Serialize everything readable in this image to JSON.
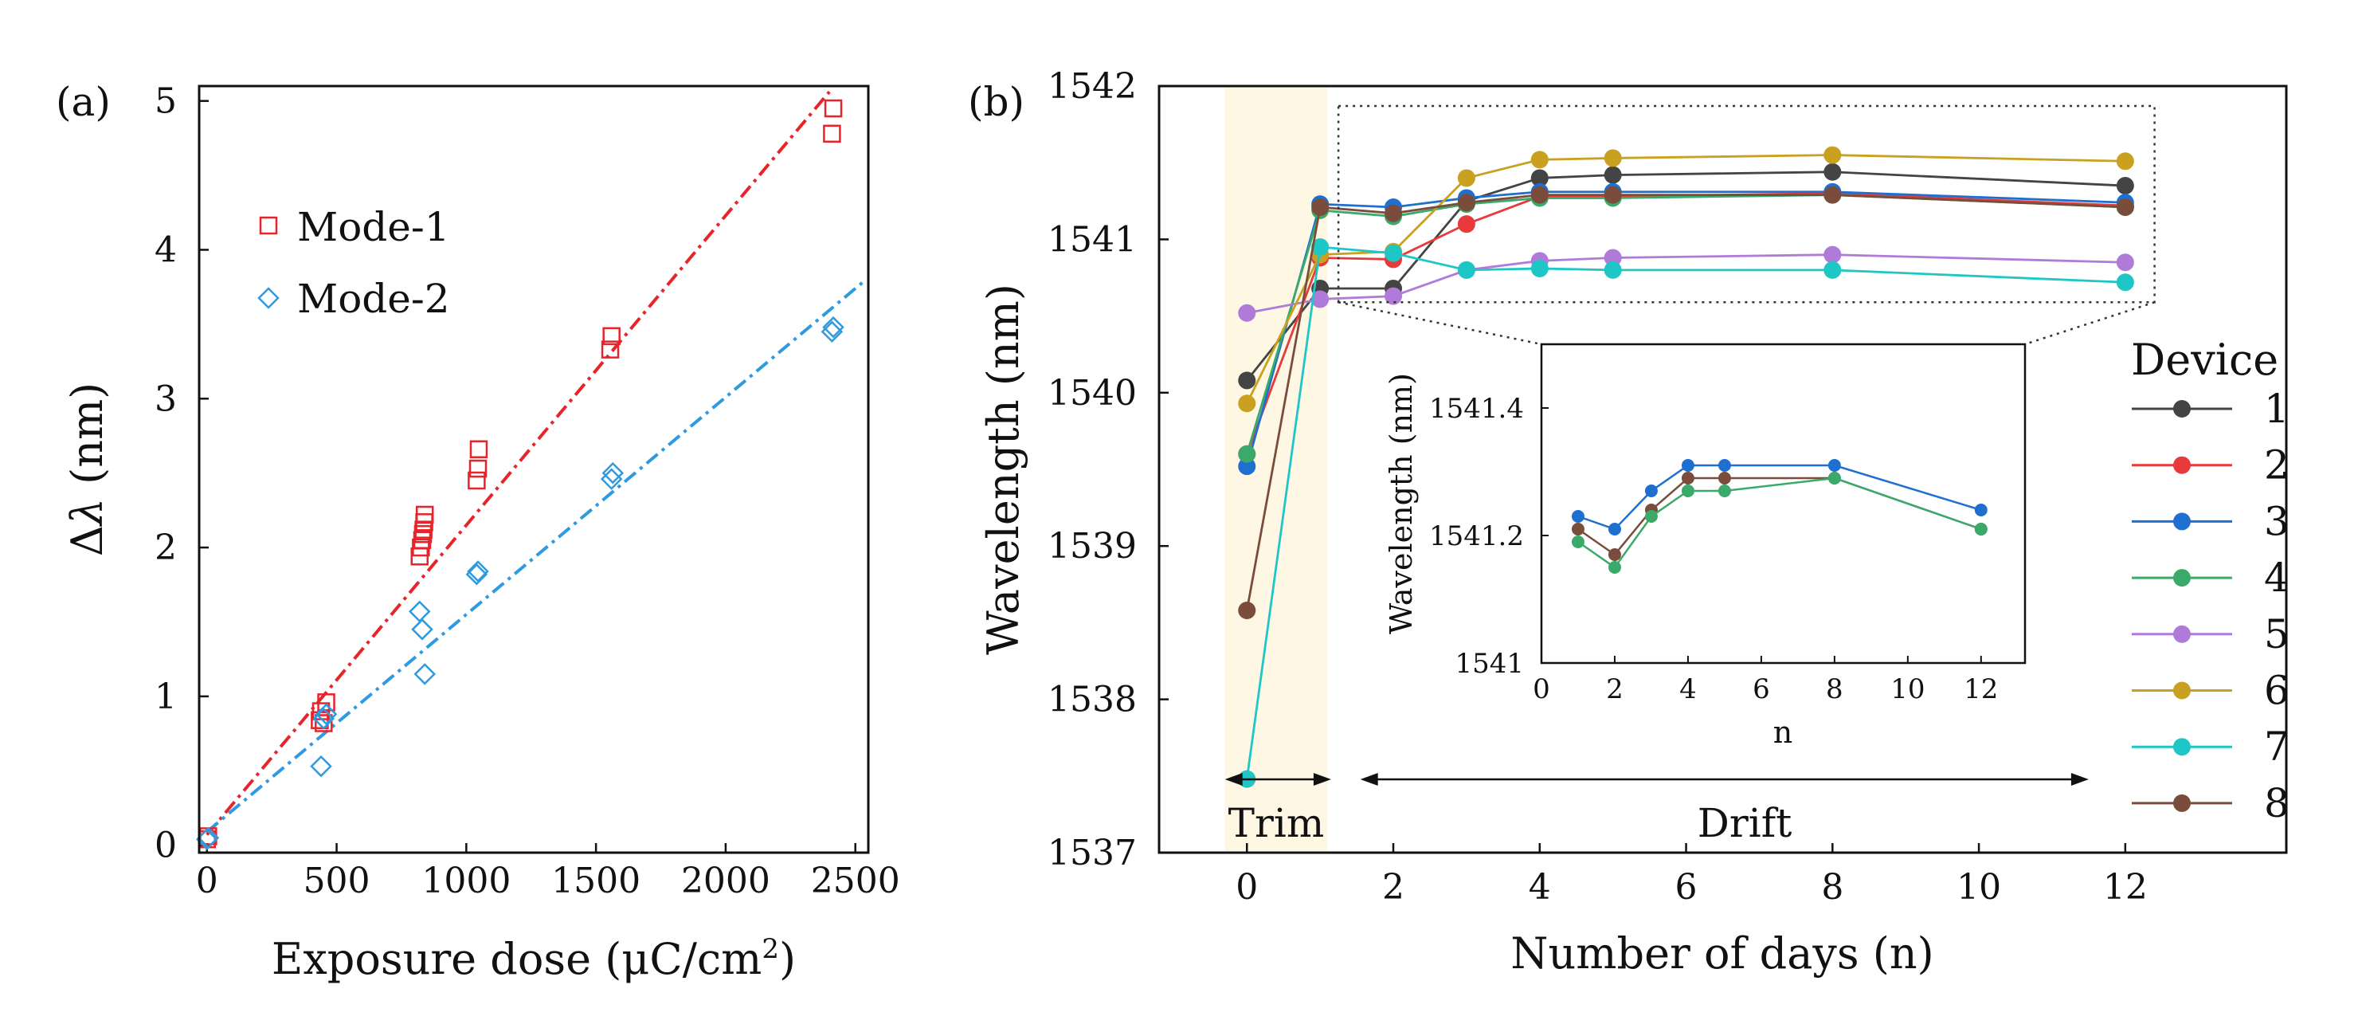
{
  "chart_data": [
    {
      "type": "scatter",
      "panel_label": "(a)",
      "xlabel_prefix": "Exposure dose (",
      "xlabel_unit": "μC/cm",
      "xlabel_sup": "2",
      "xlabel_suffix": ")",
      "ylabel_prefix": "Δ",
      "ylabel_symbol": "λ",
      "ylabel_suffix": " (nm)",
      "xlim": [
        -30,
        2550
      ],
      "ylim": [
        -0.05,
        5.1
      ],
      "xticks": [
        0,
        500,
        1000,
        1500,
        2000,
        2500
      ],
      "yticks": [
        0,
        1,
        2,
        3,
        4,
        5
      ],
      "legend_position": "top-left",
      "series": [
        {
          "name": "Mode-1",
          "color": "#e8242b",
          "marker": "square",
          "points": [
            [
              0,
              0.04
            ],
            [
              5,
              0.06
            ],
            [
              435,
              0.84
            ],
            [
              440,
              0.9
            ],
            [
              450,
              0.82
            ],
            [
              460,
              0.96
            ],
            [
              820,
              1.94
            ],
            [
              825,
              2.0
            ],
            [
              830,
              2.05
            ],
            [
              833,
              2.09
            ],
            [
              835,
              2.12
            ],
            [
              838,
              2.17
            ],
            [
              840,
              2.22
            ],
            [
              1040,
              2.45
            ],
            [
              1045,
              2.53
            ],
            [
              1048,
              2.66
            ],
            [
              1555,
              3.33
            ],
            [
              1560,
              3.42
            ],
            [
              2410,
              4.78
            ],
            [
              2415,
              4.95
            ]
          ],
          "fit": {
            "slope": 0.00208,
            "intercept": 0.07,
            "x_range": [
              0,
              2400
            ]
          }
        },
        {
          "name": "Mode-2",
          "color": "#2e9ae0",
          "marker": "diamond",
          "points": [
            [
              0,
              0.04
            ],
            [
              5,
              0.05
            ],
            [
              440,
              0.53
            ],
            [
              450,
              0.85
            ],
            [
              460,
              0.88
            ],
            [
              820,
              1.57
            ],
            [
              830,
              1.45
            ],
            [
              840,
              1.15
            ],
            [
              1040,
              1.82
            ],
            [
              1045,
              1.84
            ],
            [
              1560,
              2.46
            ],
            [
              1565,
              2.5
            ],
            [
              2410,
              3.45
            ],
            [
              2415,
              3.48
            ]
          ],
          "fit": {
            "slope": 0.00146,
            "intercept": 0.09,
            "x_range": [
              0,
              2530
            ]
          }
        }
      ]
    },
    {
      "type": "line",
      "panel_label": "(b)",
      "xlabel": "Number of days (n)",
      "ylabel": "Wavelength (nm)",
      "xlim": [
        -1.2,
        14.2
      ],
      "ylim": [
        1537,
        1542
      ],
      "xticks": [
        0,
        2,
        4,
        6,
        8,
        10,
        12
      ],
      "yticks": [
        1537,
        1538,
        1539,
        1540,
        1541,
        1542
      ],
      "legend_title": "Device",
      "legend_position": "right",
      "trim_label": "Trim",
      "drift_label": "Drift",
      "x": [
        0,
        1,
        2,
        3,
        4,
        5,
        8,
        12
      ],
      "series": [
        {
          "name": "1",
          "color": "#444444",
          "values": [
            1540.08,
            1540.68,
            1540.68,
            1541.25,
            1541.4,
            1541.42,
            1541.44,
            1541.35
          ]
        },
        {
          "name": "2",
          "color": "#e83a3a",
          "values": [
            1539.6,
            1540.88,
            1540.87,
            1541.1,
            1541.28,
            1541.28,
            1541.3,
            1541.22
          ]
        },
        {
          "name": "3",
          "color": "#1f6fd0",
          "values": [
            1539.52,
            1541.23,
            1541.21,
            1541.27,
            1541.31,
            1541.31,
            1541.31,
            1541.24
          ]
        },
        {
          "name": "4",
          "color": "#3aaa6a",
          "values": [
            1539.6,
            1541.19,
            1541.15,
            1541.23,
            1541.27,
            1541.27,
            1541.29,
            1541.21
          ]
        },
        {
          "name": "5",
          "color": "#b07ad8",
          "values": [
            1540.52,
            1540.61,
            1540.63,
            1540.8,
            1540.86,
            1540.88,
            1540.9,
            1540.85
          ]
        },
        {
          "name": "6",
          "color": "#c9a020",
          "values": [
            1539.93,
            1540.9,
            1540.92,
            1541.4,
            1541.52,
            1541.53,
            1541.55,
            1541.51
          ]
        },
        {
          "name": "7",
          "color": "#1ec6c6",
          "values": [
            1537.48,
            1540.95,
            1540.91,
            1540.8,
            1540.81,
            1540.8,
            1540.8,
            1540.72
          ]
        },
        {
          "name": "8",
          "color": "#7a4c3c",
          "values": [
            1538.58,
            1541.21,
            1541.17,
            1541.24,
            1541.29,
            1541.29,
            1541.29,
            1541.21
          ]
        }
      ],
      "inset": {
        "xlabel": "n",
        "ylabel": "Wavelength (nm)",
        "xlim": [
          0,
          13.2
        ],
        "ylim": [
          1541,
          1541.5
        ],
        "xticks": [
          0,
          2,
          4,
          6,
          8,
          10,
          12
        ],
        "yticks": [
          1541,
          1541.2,
          1541.4
        ],
        "ytick_labels": [
          "1541",
          "1541.2",
          "1541.4"
        ],
        "x": [
          1,
          2,
          3,
          4,
          5,
          8,
          12
        ],
        "series": [
          {
            "name": "3",
            "values": [
              1541.23,
              1541.21,
              1541.27,
              1541.31,
              1541.31,
              1541.31,
              1541.24
            ]
          },
          {
            "name": "8",
            "values": [
              1541.21,
              1541.17,
              1541.24,
              1541.29,
              1541.29,
              1541.29,
              1541.21
            ]
          },
          {
            "name": "4",
            "values": [
              1541.19,
              1541.15,
              1541.23,
              1541.27,
              1541.27,
              1541.29,
              1541.21
            ]
          }
        ]
      }
    }
  ]
}
